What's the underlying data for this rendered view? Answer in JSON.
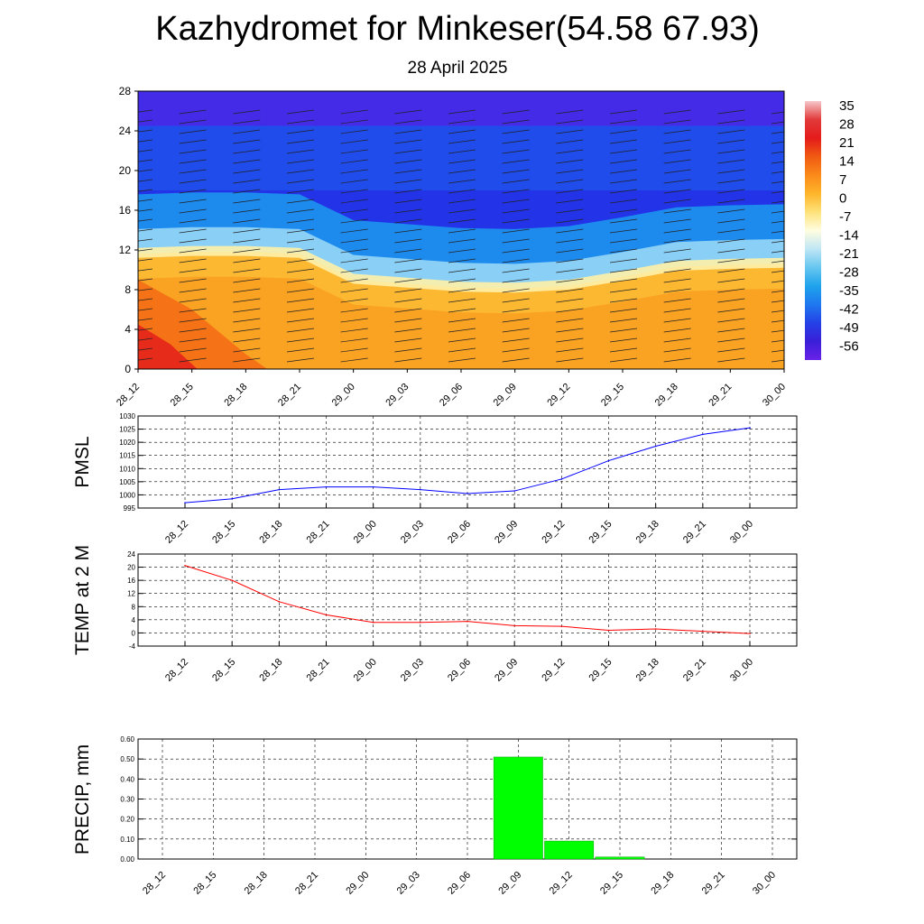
{
  "title": "Kazhydromet for Minkeser(54.58 67.93)",
  "subtitle": "28 April 2025",
  "time_labels": [
    "28_12",
    "28_15",
    "28_18",
    "28_21",
    "29_00",
    "29_03",
    "29_06",
    "29_09",
    "29_12",
    "29_15",
    "29_18",
    "29_21",
    "30_00"
  ],
  "chart_data": [
    {
      "type": "heatmap",
      "title": "",
      "xlabel": "",
      "ylabel": "",
      "x": [
        "28_12",
        "28_15",
        "28_18",
        "28_21",
        "29_00",
        "29_03",
        "29_06",
        "29_09",
        "29_12",
        "29_15",
        "29_18",
        "29_21",
        "30_00"
      ],
      "y_ticks": [
        0,
        4,
        8,
        12,
        16,
        20,
        24,
        28
      ],
      "ylim": [
        0,
        28
      ],
      "colorbar_labels": [
        "35",
        "28",
        "21",
        "14",
        "7",
        "0",
        "-7",
        "-14",
        "-21",
        "-28",
        "-35",
        "-42",
        "-49",
        "-56"
      ],
      "colorbar_colors": [
        "#f6c7c9",
        "#e23a3a",
        "#e41b1b",
        "#f05a12",
        "#fb8a1a",
        "#feb52a",
        "#fee27a",
        "#fffde0",
        "#bfe6f5",
        "#66c6f0",
        "#1ea3ec",
        "#1f78ef",
        "#2441e6",
        "#3a1fd8",
        "#6a22e8"
      ],
      "freezing_height_km": [
        11.6,
        11.8,
        11.8,
        11.6,
        9.0,
        8.6,
        8.2,
        8.1,
        8.4,
        9.3,
        10.3,
        10.5,
        10.6
      ],
      "note_colors": {
        "warm": "#f08a1a",
        "cold": "#2030e0"
      }
    },
    {
      "type": "line",
      "title": "",
      "ylabel": "PMSL",
      "categories": [
        "28_12",
        "28_15",
        "28_18",
        "28_21",
        "29_00",
        "29_03",
        "29_06",
        "29_09",
        "29_12",
        "29_15",
        "29_18",
        "29_21",
        "30_00"
      ],
      "series": [
        {
          "values": [
            997,
            998.5,
            1002,
            1003,
            1003,
            1002,
            1000.5,
            1001.5,
            1006,
            1013,
            1018.5,
            1023,
            1025.5
          ],
          "color": "#0000ff"
        }
      ],
      "ylim": [
        995,
        1030
      ],
      "yticks": [
        995,
        1000,
        1005,
        1010,
        1015,
        1020,
        1025,
        1030
      ],
      "grid": true
    },
    {
      "type": "line",
      "title": "",
      "ylabel": "TEMP at 2 M",
      "categories": [
        "28_12",
        "28_15",
        "28_18",
        "28_21",
        "29_00",
        "29_03",
        "29_06",
        "29_09",
        "29_12",
        "29_15",
        "29_18",
        "29_21",
        "30_00"
      ],
      "series": [
        {
          "values": [
            20.5,
            16,
            9.5,
            5.5,
            3.2,
            3.2,
            3.5,
            2.2,
            2.0,
            0.8,
            1.2,
            0.5,
            -0.2
          ],
          "color": "#ff0000"
        }
      ],
      "ylim": [
        -4,
        24
      ],
      "yticks": [
        -4,
        0,
        4,
        8,
        12,
        16,
        20,
        24
      ],
      "grid": true
    },
    {
      "type": "bar",
      "title": "",
      "ylabel": "PRECIP, mm",
      "categories": [
        "28_12",
        "28_15",
        "28_18",
        "28_21",
        "29_00",
        "29_03",
        "29_06",
        "29_09",
        "29_12",
        "29_15",
        "29_18",
        "29_21",
        "30_00"
      ],
      "values": [
        0,
        0,
        0,
        0,
        0,
        0,
        0,
        0.51,
        0.09,
        0.01,
        0,
        0,
        0
      ],
      "color": "#00ff00",
      "ylim": [
        0,
        0.6
      ],
      "yticks": [
        "0.00",
        "0.10",
        "0.20",
        "0.30",
        "0.40",
        "0.50",
        "0.60"
      ],
      "grid": true
    }
  ]
}
